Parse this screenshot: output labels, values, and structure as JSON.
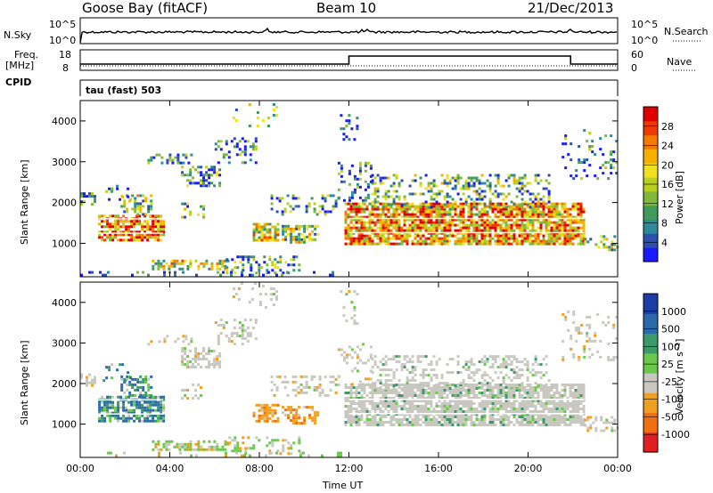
{
  "header": {
    "station": "Goose Bay (fitACF)",
    "beam": "Beam 10",
    "date": "21/Dec/2013"
  },
  "labels": {
    "nsky": "N.Sky",
    "nsearch": "N.Search",
    "freq": "Freq.",
    "freq_unit": "[MHz]",
    "nave": "Nave",
    "cpid": "CPID",
    "cpid_value": "tau (fast) 503",
    "y_upper": "10^5",
    "y_lower": "10^0",
    "freq_top": "18",
    "freq_bot": "8",
    "nave_top": "60",
    "nave_bot": "0"
  },
  "chart_data": [
    {
      "type": "heatmap",
      "panel": "power",
      "ylabel": "Slant Range [km]",
      "xlabel": "Time UT",
      "xticks": [
        "00:00",
        "04:00",
        "08:00",
        "12:00",
        "16:00",
        "20:00",
        "00:00"
      ],
      "yticks": [
        "1000",
        "2000",
        "3000",
        "4000"
      ],
      "ylim": [
        180,
        4500
      ],
      "xlim_hours": [
        0,
        24
      ],
      "colorbar": {
        "label": "Power [dB]",
        "ticks": [
          "4",
          "8",
          "12",
          "16",
          "20",
          "24",
          "28"
        ],
        "range": [
          0,
          32
        ],
        "colors": [
          "#1a1aff",
          "#2c4fb0",
          "#2c8a9a",
          "#3f9a5c",
          "#7fb83a",
          "#b8d020",
          "#f0e020",
          "#f5b000",
          "#f57a00",
          "#ee3a00",
          "#e00000"
        ]
      }
    },
    {
      "type": "heatmap",
      "panel": "velocity",
      "ylabel": "Slant Range [km]",
      "xlabel": "Time UT",
      "xticks": [
        "00:00",
        "04:00",
        "08:00",
        "12:00",
        "16:00",
        "20:00",
        "00:00"
      ],
      "yticks": [
        "1000",
        "2000",
        "3000",
        "4000"
      ],
      "ylim": [
        180,
        4500
      ],
      "xlim_hours": [
        0,
        24
      ],
      "colorbar": {
        "label": "Velocity [m s⁻¹]",
        "ticks": [
          "1000",
          "500",
          "100",
          "25",
          "-25",
          "-100",
          "-500",
          "-1000"
        ],
        "colors": [
          "#1c3ca8",
          "#2a6aa8",
          "#3a9a6a",
          "#6ac84a",
          "#c8c8c0",
          "#f0a020",
          "#f07010",
          "#e02020"
        ]
      }
    }
  ]
}
